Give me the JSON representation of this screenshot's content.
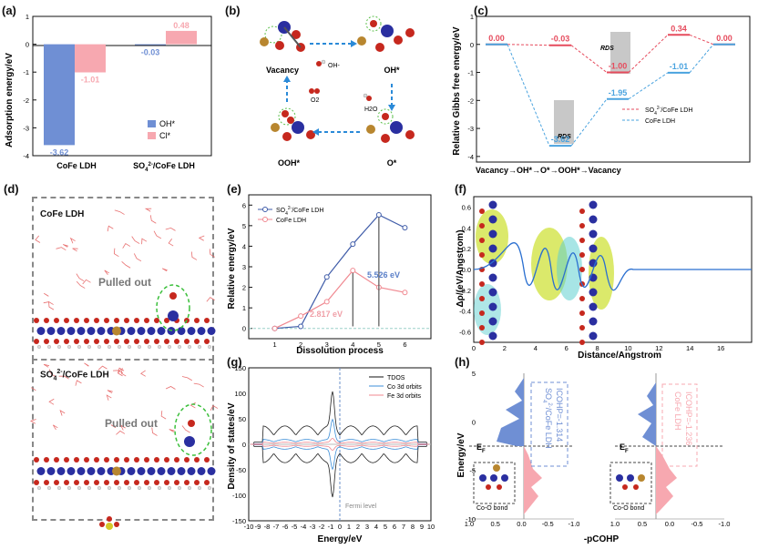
{
  "labels": {
    "a": "(a)",
    "b": "(b)",
    "c": "(c)",
    "d": "(d)",
    "e": "(e)",
    "f": "(f)",
    "g": "(g)",
    "h": "(h)"
  },
  "colors": {
    "blue": "#6f8fd4",
    "pink": "#f7a8b0",
    "lblue": "#4aa3df",
    "red": "#e64b5d",
    "dark": "#222222"
  },
  "panel_a": {
    "ylabel": "Adsorption energy/eV",
    "legend": [
      "OH*",
      "Cl*"
    ],
    "categories": [
      "CoFe LDH",
      "SO4/CoFe LDH"
    ],
    "cat_main": "SO",
    "cat_sub": "4",
    "cat_sup": "2-",
    "cat_rest": "/CoFe LDH",
    "chart_data": {
      "type": "bar",
      "title": "",
      "xlabel": "",
      "ylabel": "Adsorption energy/eV",
      "categories": [
        "CoFe LDH",
        "SO4 2-/CoFe LDH"
      ],
      "series": [
        {
          "name": "OH*",
          "values": [
            -3.62,
            -0.03
          ]
        },
        {
          "name": "Cl*",
          "values": [
            -1.01,
            0.48
          ]
        }
      ],
      "ylim": [
        -4.0,
        1.0
      ],
      "yticks": [
        1,
        0,
        -1,
        -2,
        -3,
        -4
      ],
      "value_labels": [
        "-3.62",
        "-1.01",
        "-0.03",
        "0.48"
      ]
    }
  },
  "panel_b": {
    "states": [
      "Vacancy",
      "OH*",
      "O*",
      "OOH*"
    ],
    "species": [
      "OH-",
      "O2",
      "H2O"
    ]
  },
  "panel_c": {
    "ylabel": "Relative Gibbs free energy/eV",
    "steps": [
      "Vacancy",
      "OH*",
      "O*",
      "OOH*",
      "Vacancy"
    ],
    "rds": "RDS",
    "legend": [
      "SO4 2-/CoFe LDH",
      "CoFe LDH"
    ],
    "chart_data": {
      "type": "line",
      "title": "",
      "xlabel": "Vacancy → OH* → O* → OOH* → Vacancy",
      "ylabel": "Relative Gibbs free energy/eV",
      "series": [
        {
          "name": "SO4 2-/CoFe LDH",
          "values": [
            0.0,
            -0.03,
            -1.0,
            0.34,
            0.0
          ]
        },
        {
          "name": "CoFe LDH",
          "values": [
            0.0,
            -3.62,
            -1.95,
            -1.01,
            0.0
          ]
        }
      ],
      "value_labels_red": [
        "0.00",
        "-0.03",
        "-1.00",
        "0.34",
        "0.00"
      ],
      "value_labels_blue": [
        "-3.62",
        "-1.95",
        "-1.01"
      ],
      "ylim": [
        -4.2,
        1.0
      ],
      "yticks": [
        1,
        0,
        -1,
        -2,
        -3,
        -4
      ]
    }
  },
  "panel_d": {
    "top_title": "CoFe LDH",
    "bottom_title": "SO4/CoFe LDH",
    "pulled_top": "Pulled out",
    "pulled_bottom": "Pulled out"
  },
  "panel_e": {
    "ylabel": "Relative energy/eV",
    "xlabel": "Dissolution process",
    "legend": [
      "SO4 2-/CoFe LDH",
      "CoFe LDH"
    ],
    "annot_blue": "5.526 eV",
    "annot_pink": "2.817 eV",
    "chart_data": {
      "type": "line",
      "title": "",
      "xlabel": "Dissolution process",
      "ylabel": "Relative energy/eV",
      "x": [
        1,
        2,
        3,
        4,
        5,
        6
      ],
      "series": [
        {
          "name": "SO4 2-/CoFe LDH",
          "values": [
            0.0,
            0.1,
            2.5,
            4.1,
            5.526,
            4.9
          ]
        },
        {
          "name": "CoFe LDH",
          "values": [
            0.0,
            0.6,
            1.3,
            2.817,
            2.0,
            1.75
          ]
        }
      ],
      "xlim": [
        0,
        7
      ],
      "ylim": [
        -0.5,
        6.5
      ],
      "yticks": [
        0,
        1,
        2,
        3,
        4,
        5,
        6
      ]
    }
  },
  "panel_f": {
    "ylabel": "Δρ/(eV/Angstrom)",
    "xlabel": "Distance/Angstrom",
    "chart_data": {
      "type": "line",
      "title": "",
      "xlabel": "Distance/Angstrom",
      "ylabel": "Δρ/(eV/Angstrom)",
      "xlim": [
        0,
        18
      ],
      "ylim": [
        -0.7,
        0.7
      ],
      "xticks": [
        0,
        2,
        4,
        6,
        8,
        10,
        12,
        14,
        16
      ],
      "yticks": [
        0.6,
        0.4,
        0.2,
        0.0,
        -0.2,
        -0.4,
        -0.6
      ]
    }
  },
  "panel_g": {
    "ylabel": "Density of states/eV",
    "xlabel": "Energy/eV",
    "legend": [
      "TDOS",
      "Co 3d orbits",
      "Fe 3d orbits"
    ],
    "fermi": "Fermi level",
    "chart_data": {
      "type": "line",
      "title": "",
      "xlabel": "Energy/eV",
      "ylabel": "Density of states/eV",
      "xlim": [
        -10,
        10
      ],
      "ylim": [
        -150,
        150
      ],
      "xticks": [
        -10,
        -9,
        -8,
        -7,
        -6,
        -5,
        -4,
        -3,
        -2,
        -1,
        0,
        1,
        2,
        3,
        4,
        5,
        6,
        7,
        8,
        9,
        10
      ],
      "yticks": [
        150,
        100,
        50,
        0,
        -50,
        -100,
        -150
      ],
      "series": [
        {
          "name": "TDOS",
          "values": []
        },
        {
          "name": "Co 3d orbits",
          "values": []
        },
        {
          "name": "Fe 3d orbits",
          "values": []
        }
      ]
    }
  },
  "panel_h": {
    "ylabel": "Energy/eV",
    "xlabel": "-pCOHP",
    "left_text": "SO4 2-/CoFe LDH ICOHP=-1.314",
    "left_t1": "SO",
    "left_t1b": "/CoFe LDH",
    "left_t2": "ICOHP=-1.314",
    "right_t1": "CoFe LDH",
    "right_t2": "ICOHP=-1.236",
    "ef": "E",
    "ef_sub": "F",
    "bond": "Co-O bond",
    "chart_data": {
      "type": "area",
      "title": "",
      "xlabel": "-pCOHP",
      "ylabel": "Energy/eV",
      "xlim": [
        1.0,
        -1.0
      ],
      "ylim": [
        -10,
        5
      ],
      "xticks": [
        1.0,
        0.5,
        0.0,
        -0.5,
        -1.0
      ],
      "yticks": [
        5,
        0,
        -5,
        -10
      ],
      "series": [
        {
          "name": "SO4 2-/CoFe LDH ICOHP",
          "values": [
            -1.314
          ]
        },
        {
          "name": "CoFe LDH ICOHP",
          "values": [
            -1.236
          ]
        }
      ]
    }
  }
}
